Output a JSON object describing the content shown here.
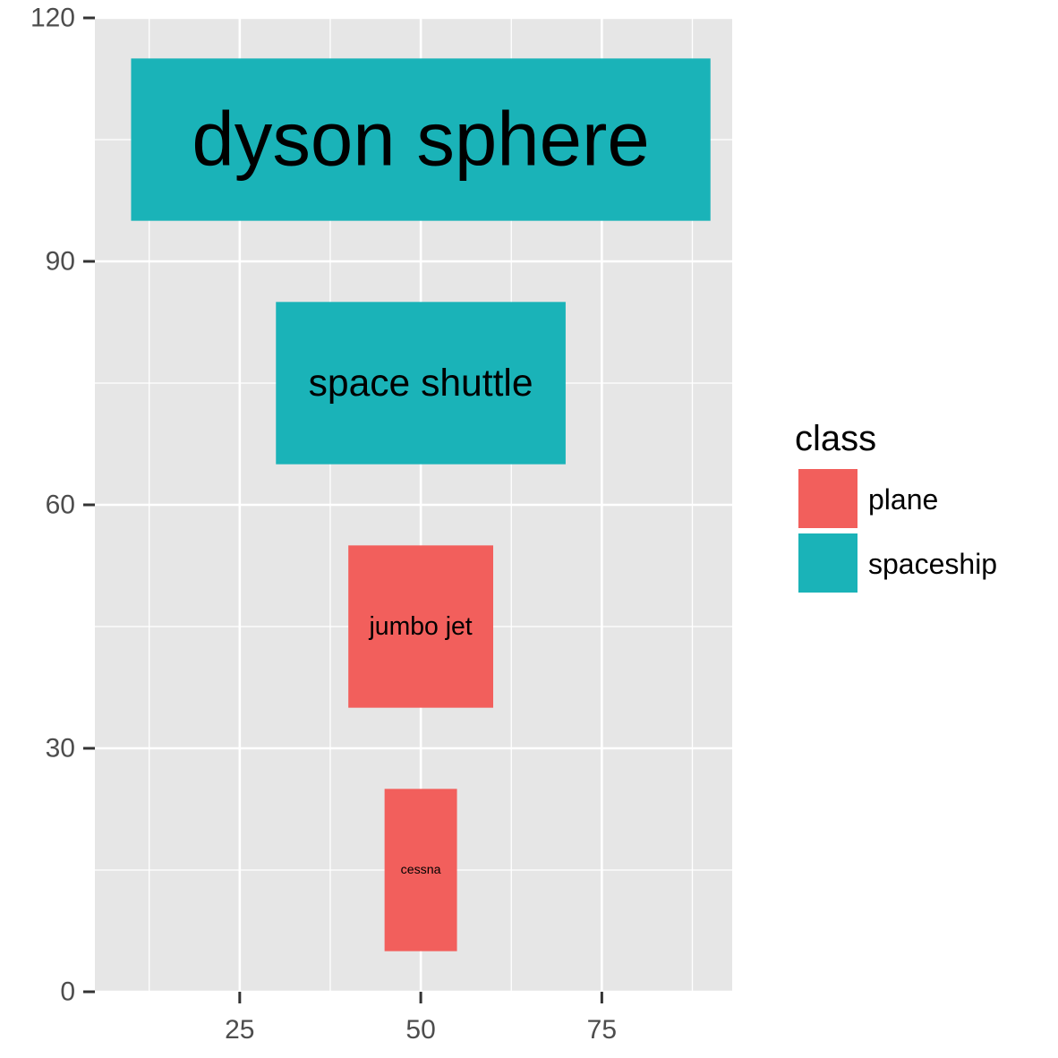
{
  "chart_data": {
    "type": "bar",
    "xlim": [
      5,
      93
    ],
    "ylim": [
      0,
      120
    ],
    "x_ticks": [
      25,
      50,
      75
    ],
    "y_ticks": [
      0,
      30,
      60,
      90,
      120
    ],
    "grid": true,
    "legend": {
      "title": "class",
      "placement": "right",
      "entries": [
        {
          "label": "plane",
          "color": "#F8766D"
        },
        {
          "label": "spaceship",
          "color": "#00BFC4"
        }
      ]
    },
    "colors": {
      "plane": "#F25F5C",
      "spaceship": "#1AB3B8",
      "panel": "#E6E6E6",
      "grid": "#FFFFFF"
    },
    "bars": [
      {
        "label": "cessna",
        "class": "plane",
        "x": 50,
        "width": 10,
        "y": 15,
        "height": 20,
        "text_size": 1
      },
      {
        "label": "jumbo jet",
        "class": "plane",
        "x": 50,
        "width": 20,
        "y": 45,
        "height": 20,
        "text_size": 2
      },
      {
        "label": "space shuttle",
        "class": "spaceship",
        "x": 50,
        "width": 40,
        "y": 75,
        "height": 20,
        "text_size": 3
      },
      {
        "label": "dyson sphere",
        "class": "spaceship",
        "x": 50,
        "width": 80,
        "y": 105,
        "height": 20,
        "text_size": 6
      }
    ]
  }
}
